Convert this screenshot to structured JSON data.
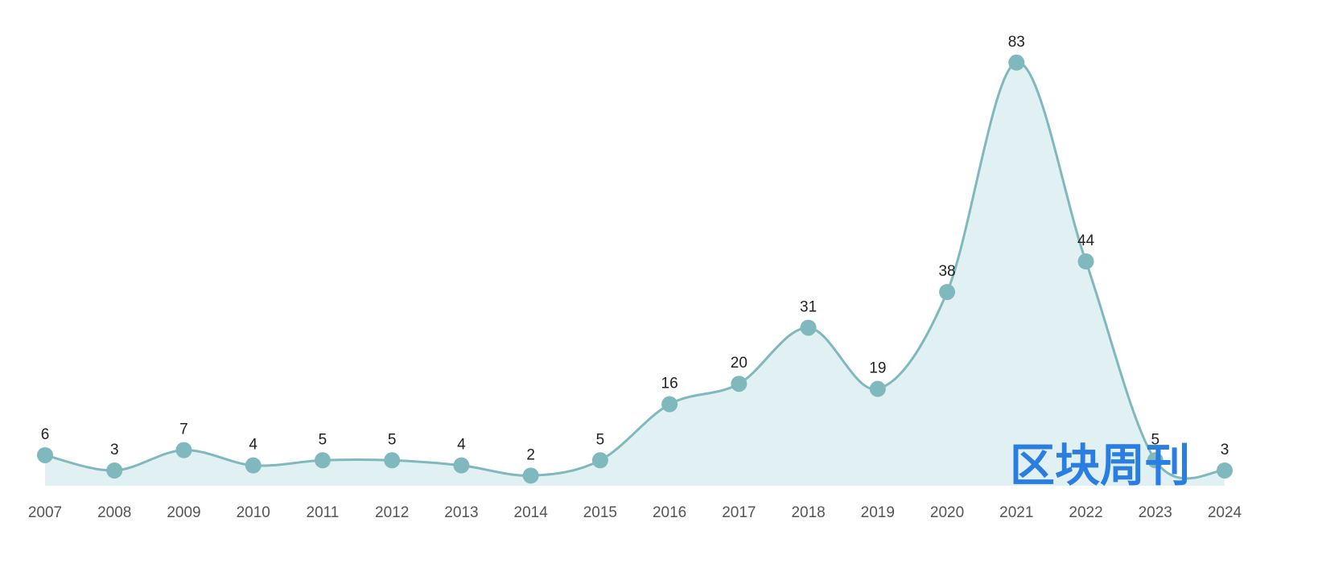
{
  "chart_data": {
    "type": "line",
    "categories": [
      "2007",
      "2008",
      "2009",
      "2010",
      "2011",
      "2012",
      "2013",
      "2014",
      "2015",
      "2016",
      "2017",
      "2018",
      "2019",
      "2020",
      "2021",
      "2022",
      "2023",
      "2024"
    ],
    "values": [
      6,
      3,
      7,
      4,
      5,
      5,
      4,
      2,
      5,
      16,
      20,
      31,
      19,
      38,
      83,
      44,
      5,
      3
    ],
    "color": "#7fb8bd",
    "area_color": "#e1f0f2",
    "smooth": true,
    "watermark": "区块周刊"
  }
}
